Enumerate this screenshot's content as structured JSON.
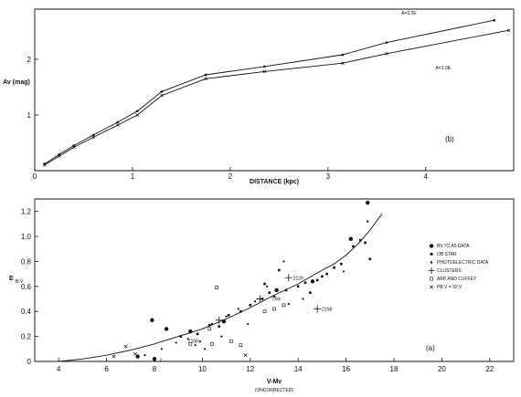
{
  "chart_data": [
    {
      "type": "line",
      "panel_label": "(b)",
      "ylabel": "Av (mag)",
      "xlabel": "DISTANCE (kpc)",
      "xlim": [
        0,
        4.9
      ],
      "ylim": [
        0,
        2.9
      ],
      "xticks": [
        "0",
        "1",
        "2",
        "3",
        "4"
      ],
      "yticks": [
        "1",
        "2"
      ],
      "series": [
        {
          "name": "A=3.2E",
          "x": [
            0.1,
            0.25,
            0.4,
            0.6,
            0.85,
            1.05,
            1.3,
            1.75,
            2.35,
            3.15,
            3.6,
            4.7
          ],
          "y": [
            0.12,
            0.29,
            0.45,
            0.64,
            0.87,
            1.07,
            1.42,
            1.72,
            1.87,
            2.08,
            2.3,
            2.7
          ]
        },
        {
          "name": "A=3.0E",
          "x": [
            0.1,
            0.25,
            0.4,
            0.6,
            0.85,
            1.05,
            1.3,
            1.75,
            2.35,
            3.15,
            3.6,
            4.85
          ],
          "y": [
            0.1,
            0.26,
            0.42,
            0.6,
            0.82,
            1.0,
            1.35,
            1.65,
            1.78,
            1.93,
            2.1,
            2.52
          ]
        }
      ]
    },
    {
      "type": "scatter",
      "panel_label": "(a)",
      "ylabel": "E",
      "ylabel_sub": "B-V",
      "xlabel": "V-Mv",
      "xlabel_note": "(UNCORRECTED)",
      "xlim": [
        3,
        23
      ],
      "ylim": [
        0,
        1.3
      ],
      "xticks": [
        "4",
        "6",
        "8",
        "10",
        "12",
        "14",
        "16",
        "18",
        "20",
        "22"
      ],
      "yticks": [
        "0",
        "0.2",
        "0.4",
        "0.6",
        "0.8",
        "1.0",
        "1.2"
      ],
      "legend_position": "right",
      "legend": [
        "B5 TO A5 DATA",
        "OB STAR",
        "PHOTOELECTRIC DATA",
        "CLUSTERS",
        "ARP AND CUFFEY",
        "PB V = 02 V"
      ],
      "labels": {
        "cluster_a": "2129",
        "cluster_b": "2158",
        "near_tr": "TR4",
        "near_low": "2168",
        "near_8": "2"
      },
      "curve": {
        "x": [
          4,
          5,
          6,
          7,
          8,
          9,
          10,
          11,
          12,
          13,
          14,
          15,
          15.5,
          16,
          16.5,
          17,
          17.5
        ],
        "y": [
          0,
          0.02,
          0.05,
          0.09,
          0.14,
          0.2,
          0.26,
          0.34,
          0.43,
          0.53,
          0.62,
          0.73,
          0.78,
          0.85,
          0.94,
          1.05,
          1.18
        ]
      },
      "b5_a5": [
        [
          7.9,
          0.33
        ],
        [
          8.5,
          0.26
        ],
        [
          9.5,
          0.24
        ],
        [
          10.9,
          0.32
        ],
        [
          13.1,
          0.57
        ],
        [
          14.6,
          0.64
        ],
        [
          16.2,
          0.98
        ],
        [
          16.9,
          1.27
        ],
        [
          8.0,
          0.02
        ],
        [
          7.3,
          0.04
        ]
      ],
      "ob_stars": [
        [
          9.1,
          0.2
        ],
        [
          9.8,
          0.22
        ],
        [
          10.3,
          0.29
        ],
        [
          10.7,
          0.28
        ],
        [
          11.1,
          0.37
        ],
        [
          11.6,
          0.4
        ],
        [
          12.0,
          0.45
        ],
        [
          12.5,
          0.5
        ],
        [
          12.8,
          0.55
        ],
        [
          13.5,
          0.57
        ],
        [
          14.0,
          0.6
        ],
        [
          14.3,
          0.63
        ],
        [
          14.8,
          0.65
        ],
        [
          15.2,
          0.7
        ],
        [
          15.5,
          0.75
        ],
        [
          15.8,
          0.78
        ],
        [
          16.3,
          0.92
        ],
        [
          16.6,
          0.97
        ],
        [
          17.0,
          0.82
        ],
        [
          16.8,
          0.95
        ],
        [
          13.2,
          0.73
        ],
        [
          12.6,
          0.62
        ],
        [
          14.5,
          0.55
        ],
        [
          15.0,
          0.68
        ]
      ],
      "photoelectric": [
        [
          7.6,
          0.05
        ],
        [
          8.3,
          0.1
        ],
        [
          8.9,
          0.15
        ],
        [
          9.4,
          0.18
        ],
        [
          9.9,
          0.16
        ],
        [
          10.4,
          0.3
        ],
        [
          11.0,
          0.36
        ],
        [
          11.5,
          0.42
        ],
        [
          12.2,
          0.48
        ],
        [
          13.0,
          0.52
        ],
        [
          13.6,
          0.46
        ],
        [
          14.2,
          0.5
        ],
        [
          10.8,
          0.2
        ],
        [
          11.9,
          0.3
        ],
        [
          12.7,
          0.6
        ],
        [
          13.4,
          0.8
        ],
        [
          16.9,
          1.12
        ],
        [
          15.9,
          0.72
        ],
        [
          10.1,
          0.1
        ],
        [
          9.7,
          0.13
        ]
      ],
      "clusters": [
        [
          13.6,
          0.67
        ],
        [
          14.8,
          0.42
        ],
        [
          12.4,
          0.5
        ],
        [
          10.7,
          0.33
        ]
      ],
      "arp_cuffey": [
        [
          10.6,
          0.59
        ],
        [
          10.3,
          0.26
        ],
        [
          11.2,
          0.16
        ],
        [
          11.6,
          0.13
        ],
        [
          12.6,
          0.4
        ],
        [
          13.0,
          0.42
        ],
        [
          9.5,
          0.14
        ],
        [
          10.4,
          0.14
        ],
        [
          13.4,
          0.45
        ]
      ],
      "pb": [
        [
          6.3,
          0.04
        ],
        [
          6.8,
          0.12
        ],
        [
          7.2,
          0.06
        ],
        [
          11.8,
          0.05
        ]
      ]
    }
  ]
}
